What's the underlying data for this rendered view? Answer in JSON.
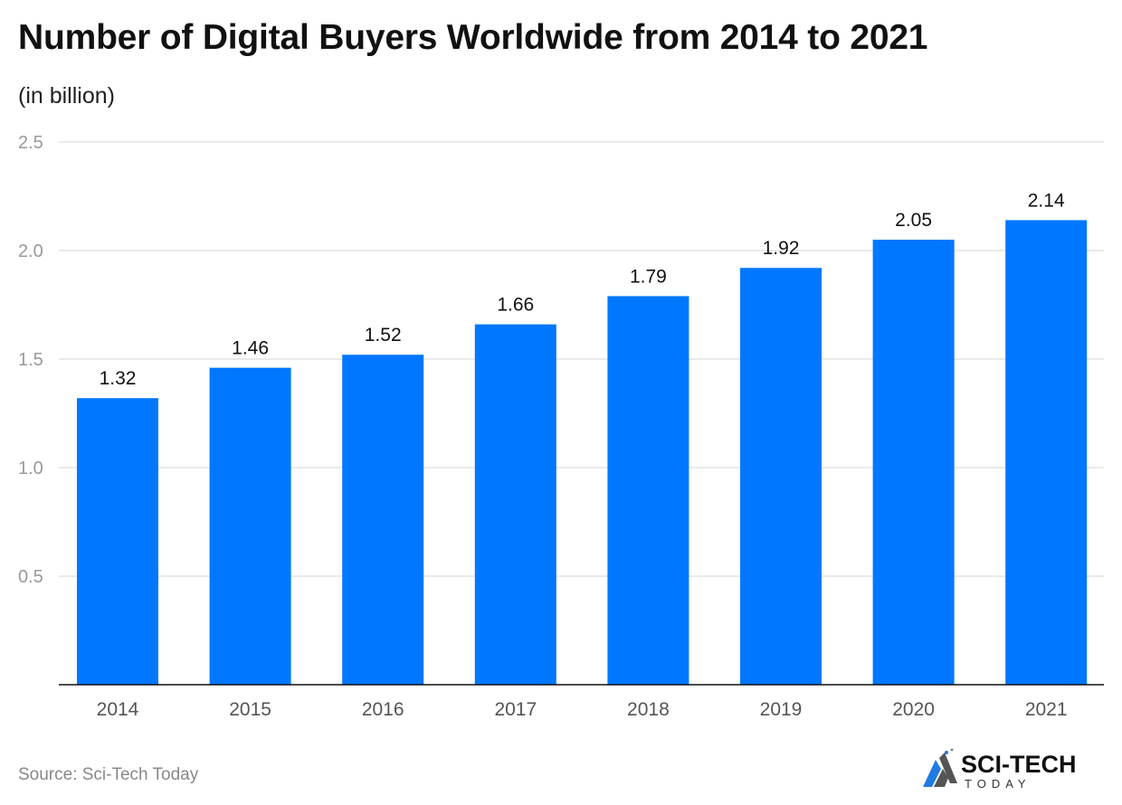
{
  "chart_data": {
    "type": "bar",
    "title": "Number of Digital Buyers Worldwide from 2014 to 2021",
    "subtitle": "(in billion)",
    "categories": [
      "2014",
      "2015",
      "2016",
      "2017",
      "2018",
      "2019",
      "2020",
      "2021"
    ],
    "values": [
      1.32,
      1.46,
      1.52,
      1.66,
      1.79,
      1.92,
      2.05,
      2.14
    ],
    "ylim": [
      0,
      2.5
    ],
    "yticks": [
      "0.5",
      "1.0",
      "1.5",
      "2.0",
      "2.5"
    ],
    "grid": true,
    "bar_color": "#0077ff"
  },
  "source": "Source: Sci-Tech Today",
  "logo": {
    "line1": "SCI-TECH",
    "line2": "TODAY"
  }
}
